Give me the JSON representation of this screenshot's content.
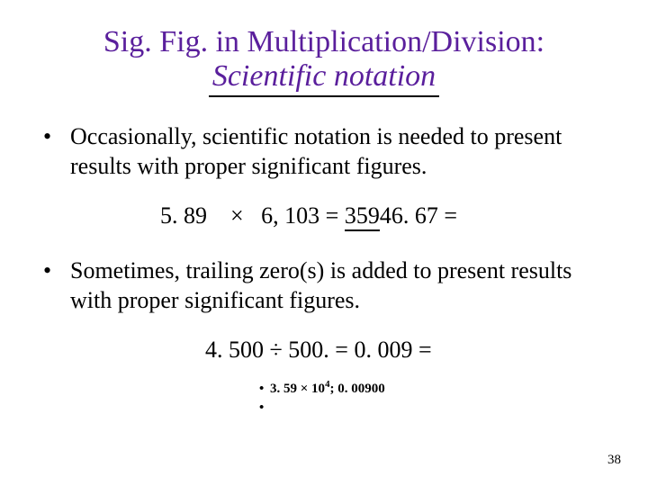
{
  "title": {
    "line1": "Sig. Fig. in Multiplication/Division:",
    "line2": "Scientific notation",
    "color": "#5a1f9c",
    "fontsize": 34
  },
  "bullets": [
    "Occasionally, scientific notation is needed to present results with proper significant figures.",
    "Sometimes, trailing zero(s) is added to present results with proper significant figures."
  ],
  "equation1": {
    "lhs_a": "5. 89",
    "op": "×",
    "lhs_b": "6, 103",
    "eq": "=",
    "result_underlined_prefix": "359",
    "result_rest": "46. 67",
    "trailing_eq": " ="
  },
  "equation2": {
    "lhs_a": "4. 500",
    "op": "÷",
    "lhs_b": "500.",
    "eq": "=",
    "result": "0. 009",
    "trailing_eq": "  ="
  },
  "answers": {
    "line1_prefix": "3. 59 × 10",
    "line1_sup": "4",
    "line1_suffix": "; 0. 00900",
    "line2": ""
  },
  "page_number": "38",
  "colors": {
    "text": "#000000",
    "background": "#ffffff",
    "underline": "#000000"
  },
  "fonts": {
    "body_size": 26,
    "answer_size": 15,
    "family": "Times New Roman"
  }
}
